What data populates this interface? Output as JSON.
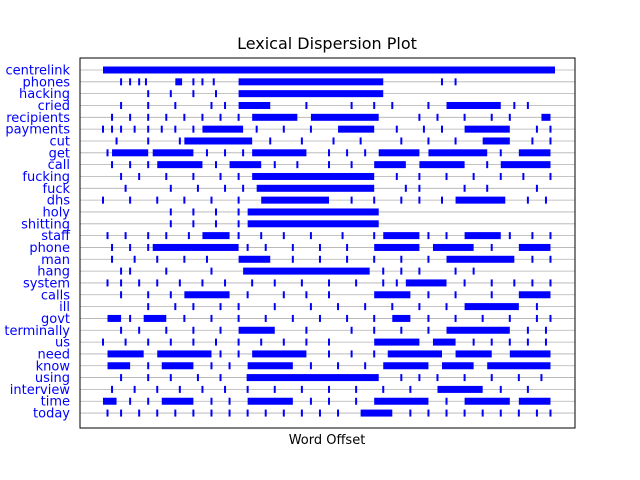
{
  "chart_data": {
    "type": "scatter",
    "title": "Lexical Dispersion Plot",
    "xlabel": "Word Offset",
    "ylabel": "",
    "grid": "horizontal",
    "colors": {
      "marks": "#0000ff",
      "labels": "#0000ff",
      "grid": "#b0b0b0"
    },
    "xlim": [
      0,
      1
    ],
    "words": [
      {
        "word": "centrelink",
        "offsets": [
          [
            0.0,
            1.0
          ]
        ]
      },
      {
        "word": "phones",
        "offsets": [
          0.04,
          0.06,
          0.08,
          0.095,
          [
            0.16,
            0.175
          ],
          0.2,
          0.22,
          0.245,
          [
            0.3,
            0.62
          ],
          0.75,
          0.78
        ]
      },
      {
        "word": "hacking",
        "offsets": [
          0.1,
          0.15,
          0.2,
          0.25,
          [
            0.3,
            0.62
          ]
        ]
      },
      {
        "word": "cried",
        "offsets": [
          0.04,
          0.1,
          0.16,
          0.24,
          0.27,
          0.31,
          [
            0.3,
            0.37
          ],
          0.45,
          0.55,
          0.6,
          0.64,
          0.72,
          [
            0.76,
            0.88
          ],
          0.91,
          0.94
        ]
      },
      {
        "word": "recipients",
        "offsets": [
          0.02,
          0.06,
          0.1,
          0.14,
          0.18,
          0.22,
          0.26,
          0.3,
          [
            0.33,
            0.43
          ],
          [
            0.46,
            0.61
          ],
          0.7,
          0.74,
          0.8,
          0.86,
          0.9,
          [
            0.97,
            0.99
          ]
        ]
      },
      {
        "word": "payments",
        "offsets": [
          0.0,
          0.02,
          0.04,
          0.07,
          0.1,
          0.13,
          0.16,
          0.2,
          [
            0.22,
            0.31
          ],
          0.34,
          0.4,
          0.46,
          [
            0.52,
            0.6
          ],
          0.65,
          0.71,
          0.75,
          [
            0.8,
            0.9
          ],
          0.96,
          0.99
        ]
      },
      {
        "word": "cut",
        "offsets": [
          0.03,
          0.1,
          0.17,
          [
            0.18,
            0.33
          ],
          0.37,
          0.44,
          0.51,
          0.57,
          0.66,
          0.72,
          0.78,
          [
            0.84,
            0.9
          ],
          0.95,
          0.99
        ]
      },
      {
        "word": "get",
        "offsets": [
          0.01,
          [
            0.02,
            0.1
          ],
          [
            0.11,
            0.2
          ],
          0.23,
          0.27,
          0.31,
          [
            0.33,
            0.45
          ],
          0.5,
          0.54,
          0.58,
          [
            0.61,
            0.7
          ],
          [
            0.72,
            0.85
          ],
          0.88,
          [
            0.92,
            0.99
          ]
        ]
      },
      {
        "word": "call",
        "offsets": [
          0.02,
          0.06,
          0.1,
          [
            0.12,
            0.22
          ],
          0.25,
          [
            0.28,
            0.35
          ],
          0.38,
          0.43,
          0.5,
          0.55,
          [
            0.6,
            0.67
          ],
          [
            0.7,
            0.8
          ],
          0.85,
          [
            0.88,
            0.99
          ]
        ]
      },
      {
        "word": "fucking",
        "offsets": [
          0.04,
          0.08,
          0.14,
          0.2,
          0.26,
          0.3,
          [
            0.33,
            0.6
          ],
          0.65,
          0.7,
          0.76,
          0.82,
          0.88,
          0.93,
          0.99
        ]
      },
      {
        "word": "fuck",
        "offsets": [
          0.05,
          0.15,
          0.21,
          0.27,
          0.31,
          [
            0.34,
            0.6
          ],
          0.67,
          0.7,
          0.8,
          0.85,
          0.96
        ]
      },
      {
        "word": "dhs",
        "offsets": [
          0.0,
          0.06,
          0.12,
          0.18,
          0.24,
          0.3,
          [
            0.35,
            0.5
          ],
          0.55,
          0.6,
          0.66,
          0.7,
          0.75,
          [
            0.78,
            0.89
          ],
          0.94,
          0.98
        ]
      },
      {
        "word": "holy",
        "offsets": [
          0.15,
          0.2,
          0.25,
          0.3,
          [
            0.32,
            0.61
          ]
        ]
      },
      {
        "word": "shitting",
        "offsets": [
          0.15,
          0.2,
          0.25,
          0.3,
          [
            0.32,
            0.61
          ]
        ]
      },
      {
        "word": "staff",
        "offsets": [
          0.01,
          0.05,
          0.1,
          0.14,
          0.19,
          [
            0.22,
            0.28
          ],
          0.3,
          0.35,
          0.4,
          0.46,
          0.53,
          0.6,
          [
            0.62,
            0.7
          ],
          0.72,
          0.76,
          [
            0.8,
            0.88
          ],
          0.9,
          0.95,
          0.99
        ]
      },
      {
        "word": "phone",
        "offsets": [
          0.02,
          0.06,
          0.1,
          [
            0.11,
            0.3
          ],
          0.32,
          0.36,
          0.42,
          0.48,
          0.54,
          [
            0.6,
            0.7
          ],
          [
            0.73,
            0.82
          ],
          0.86,
          [
            0.92,
            0.99
          ]
        ]
      },
      {
        "word": "man",
        "offsets": [
          0.02,
          0.07,
          0.12,
          0.18,
          0.23,
          [
            0.3,
            0.37
          ],
          0.42,
          0.48,
          0.54,
          0.6,
          0.66,
          0.72,
          [
            0.76,
            0.91
          ],
          0.95,
          0.99
        ]
      },
      {
        "word": "hang",
        "offsets": [
          0.04,
          0.06,
          0.14,
          0.24,
          [
            0.31,
            0.59
          ],
          0.62,
          0.66,
          0.7,
          0.78,
          0.82
        ]
      },
      {
        "word": "system",
        "offsets": [
          0.01,
          0.04,
          0.08,
          0.12,
          0.17,
          0.22,
          0.27,
          0.33,
          0.38,
          0.44,
          0.5,
          0.56,
          0.62,
          0.65,
          [
            0.67,
            0.76
          ],
          0.8,
          0.86,
          0.91,
          0.95,
          0.99
        ]
      },
      {
        "word": "calls",
        "offsets": [
          0.04,
          0.1,
          0.15,
          [
            0.18,
            0.28
          ],
          0.32,
          0.4,
          0.45,
          0.5,
          [
            0.6,
            0.68
          ],
          0.72,
          0.78,
          0.86,
          [
            0.92,
            0.99
          ]
        ]
      },
      {
        "word": "ill",
        "offsets": [
          0.1,
          0.16,
          0.2,
          0.26,
          0.3,
          0.38,
          0.46,
          0.52,
          0.58,
          0.64,
          0.7,
          0.76,
          [
            0.8,
            0.92
          ],
          0.96
        ]
      },
      {
        "word": "govt",
        "offsets": [
          [
            0.01,
            0.04
          ],
          0.06,
          [
            0.09,
            0.14
          ],
          0.18,
          0.24,
          0.3,
          0.36,
          0.42,
          0.48,
          0.54,
          0.6,
          [
            0.64,
            0.68
          ],
          0.72,
          0.78,
          0.84,
          0.9,
          0.96,
          0.99
        ]
      },
      {
        "word": "terminally",
        "offsets": [
          0.04,
          0.08,
          0.14,
          0.2,
          0.26,
          [
            0.3,
            0.38
          ],
          0.45,
          0.55,
          0.6,
          0.66,
          0.72,
          [
            0.76,
            0.9
          ],
          0.94,
          0.98
        ]
      },
      {
        "word": "us",
        "offsets": [
          0.0,
          0.05,
          0.1,
          0.15,
          0.2,
          0.25,
          0.3,
          0.35,
          0.4,
          0.45,
          0.5,
          [
            0.6,
            0.7
          ],
          [
            0.73,
            0.78
          ],
          0.82,
          0.86,
          0.9,
          0.94,
          0.98
        ]
      },
      {
        "word": "need",
        "offsets": [
          [
            0.01,
            0.09
          ],
          [
            0.12,
            0.24
          ],
          0.26,
          0.3,
          [
            0.33,
            0.45
          ],
          0.5,
          0.55,
          0.6,
          [
            0.63,
            0.75
          ],
          [
            0.78,
            0.86
          ],
          [
            0.9,
            0.99
          ]
        ]
      },
      {
        "word": "know",
        "offsets": [
          [
            0.01,
            0.06
          ],
          0.1,
          [
            0.13,
            0.2
          ],
          0.24,
          0.28,
          [
            0.32,
            0.42
          ],
          0.46,
          0.52,
          0.58,
          [
            0.62,
            0.72
          ],
          [
            0.75,
            0.82
          ],
          [
            0.85,
            0.99
          ]
        ]
      },
      {
        "word": "using",
        "offsets": [
          0.04,
          0.1,
          0.15,
          0.21,
          0.26,
          0.32,
          [
            0.32,
            0.61
          ],
          0.66,
          0.7,
          0.74,
          0.8,
          0.86,
          0.92,
          0.97
        ]
      },
      {
        "word": "interview",
        "offsets": [
          0.02,
          0.07,
          0.12,
          0.17,
          0.22,
          0.27,
          0.32,
          0.38,
          0.44,
          0.5,
          0.56,
          0.62,
          0.68,
          [
            0.74,
            0.84
          ],
          0.88,
          0.94
        ]
      },
      {
        "word": "time",
        "offsets": [
          [
            0.0,
            0.03
          ],
          0.06,
          0.1,
          [
            0.13,
            0.2
          ],
          0.24,
          0.28,
          [
            0.32,
            0.42
          ],
          0.46,
          0.5,
          0.56,
          [
            0.6,
            0.72
          ],
          0.76,
          [
            0.8,
            0.9
          ],
          [
            0.92,
            0.99
          ]
        ]
      },
      {
        "word": "today",
        "offsets": [
          0.01,
          0.04,
          0.08,
          0.12,
          0.16,
          0.2,
          0.24,
          0.28,
          0.32,
          0.36,
          0.4,
          0.44,
          0.48,
          0.52,
          [
            0.57,
            0.64
          ],
          0.68,
          0.72,
          0.76,
          0.8,
          0.84,
          0.88,
          0.92,
          0.96,
          0.99
        ]
      }
    ]
  }
}
